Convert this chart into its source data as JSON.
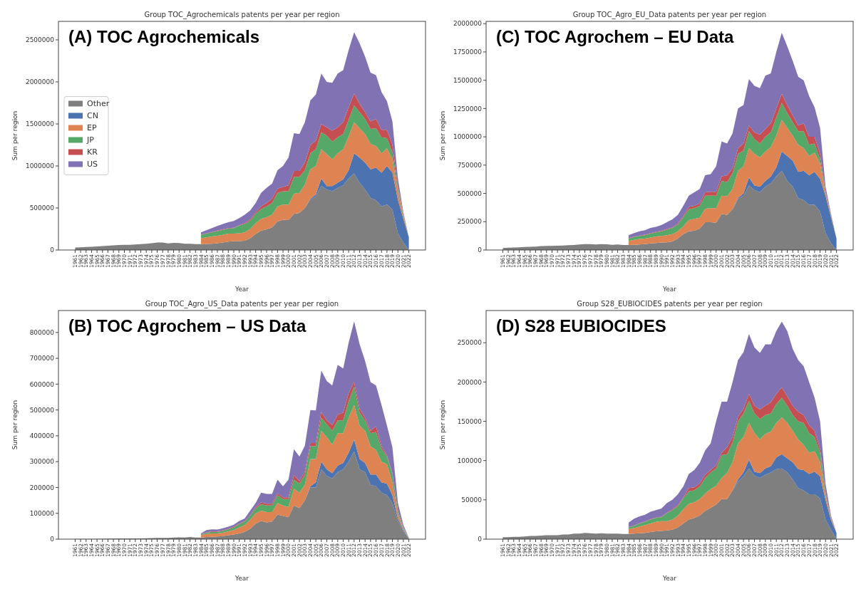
{
  "chart_data": [
    {
      "type": "area",
      "stacked": true,
      "title": "Group TOC_Agrochemicals patents per year per region",
      "annotations": [
        "(A) TOC Agrochemicals"
      ],
      "xlabel": "Year",
      "ylabel": "Sum per region",
      "legend": "center left",
      "ylim": [
        0,
        2720000
      ],
      "yticks": [
        0,
        500000,
        1000000,
        1500000,
        2000000,
        2500000
      ],
      "categories": [
        "1961",
        "1962",
        "1963",
        "1964",
        "1965",
        "1966",
        "1967",
        "1968",
        "1969",
        "1970",
        "1971",
        "1972",
        "1973",
        "1974",
        "1975",
        "1976",
        "1977",
        "1978",
        "1979",
        "1980",
        "1981",
        "1982",
        "1983",
        "1984",
        "1985",
        "1986",
        "1987",
        "1988",
        "1989",
        "1990",
        "1991",
        "1992",
        "1993",
        "1994",
        "1995",
        "1996",
        "1997",
        "1998",
        "1999",
        "2000",
        "2001",
        "2002",
        "2003",
        "2004",
        "2005",
        "2006",
        "2007",
        "2008",
        "2009",
        "2010",
        "2011",
        "2012",
        "2013",
        "2014",
        "2015",
        "2016",
        "2017",
        "2018",
        "2019",
        "2020",
        "2021",
        "2022"
      ],
      "series": [
        {
          "name": "Other",
          "color": "#7f7f7f",
          "values": [
            30000,
            32000,
            35000,
            38000,
            42000,
            46000,
            50000,
            56000,
            60000,
            62000,
            62000,
            66000,
            70000,
            75000,
            80000,
            90000,
            88000,
            78000,
            85000,
            82000,
            75000,
            75000,
            70000,
            70000,
            72000,
            75000,
            80000,
            90000,
            100000,
            105000,
            105000,
            110000,
            140000,
            190000,
            230000,
            245000,
            270000,
            340000,
            360000,
            355000,
            430000,
            440000,
            500000,
            600000,
            640000,
            760000,
            720000,
            700000,
            740000,
            770000,
            850000,
            910000,
            800000,
            720000,
            620000,
            590000,
            520000,
            540000,
            480000,
            200000,
            90000,
            0
          ]
        },
        {
          "name": "CN",
          "color": "#4c72b0",
          "values": [
            null,
            null,
            null,
            null,
            null,
            null,
            null,
            null,
            null,
            null,
            null,
            null,
            null,
            null,
            null,
            null,
            null,
            null,
            null,
            null,
            null,
            null,
            null,
            0,
            0,
            0,
            0,
            0,
            0,
            0,
            0,
            0,
            0,
            0,
            0,
            0,
            0,
            0,
            0,
            0,
            0,
            0,
            0,
            10000,
            20000,
            90000,
            40000,
            60000,
            60000,
            70000,
            100000,
            240000,
            300000,
            320000,
            340000,
            390000,
            400000,
            460000,
            440000,
            400000,
            280000,
            150000
          ]
        },
        {
          "name": "EP",
          "color": "#dd8452",
          "values": [
            null,
            null,
            null,
            null,
            null,
            null,
            null,
            null,
            null,
            null,
            null,
            null,
            null,
            null,
            null,
            null,
            null,
            null,
            null,
            null,
            null,
            null,
            null,
            70000,
            78000,
            85000,
            90000,
            90000,
            95000,
            90000,
            95000,
            100000,
            110000,
            130000,
            140000,
            145000,
            150000,
            180000,
            180000,
            185000,
            240000,
            240000,
            280000,
            350000,
            340000,
            350000,
            380000,
            320000,
            350000,
            360000,
            400000,
            370000,
            350000,
            340000,
            300000,
            260000,
            230000,
            210000,
            160000,
            100000,
            30000,
            0
          ]
        },
        {
          "name": "JP",
          "color": "#55a868",
          "values": [
            null,
            null,
            null,
            null,
            null,
            null,
            null,
            null,
            null,
            null,
            null,
            null,
            null,
            null,
            null,
            null,
            null,
            null,
            null,
            null,
            null,
            null,
            null,
            40000,
            45000,
            50000,
            55000,
            60000,
            60000,
            65000,
            90000,
            100000,
            100000,
            110000,
            120000,
            130000,
            140000,
            160000,
            160000,
            160000,
            200000,
            190000,
            170000,
            190000,
            200000,
            200000,
            220000,
            210000,
            190000,
            180000,
            200000,
            200000,
            190000,
            180000,
            180000,
            210000,
            190000,
            120000,
            80000,
            30000,
            20000,
            0
          ]
        },
        {
          "name": "KR",
          "color": "#c44e52",
          "values": [
            null,
            null,
            null,
            null,
            null,
            null,
            null,
            null,
            null,
            null,
            null,
            null,
            null,
            null,
            null,
            null,
            null,
            null,
            null,
            null,
            null,
            null,
            null,
            5000,
            5000,
            5000,
            5000,
            5000,
            5000,
            5000,
            5000,
            10000,
            15000,
            20000,
            30000,
            40000,
            50000,
            50000,
            50000,
            70000,
            70000,
            70000,
            90000,
            100000,
            100000,
            100000,
            100000,
            130000,
            120000,
            140000,
            150000,
            140000,
            100000,
            80000,
            90000,
            110000,
            90000,
            100000,
            90000,
            30000,
            10000,
            0
          ]
        },
        {
          "name": "US",
          "color": "#8172b3",
          "values": [
            null,
            null,
            null,
            null,
            null,
            null,
            null,
            null,
            null,
            null,
            null,
            null,
            null,
            null,
            null,
            null,
            null,
            null,
            null,
            null,
            null,
            null,
            null,
            25000,
            35000,
            45000,
            55000,
            65000,
            70000,
            80000,
            85000,
            100000,
            105000,
            110000,
            160000,
            180000,
            180000,
            220000,
            250000,
            330000,
            450000,
            440000,
            480000,
            530000,
            550000,
            600000,
            540000,
            570000,
            640000,
            620000,
            680000,
            730000,
            720000,
            660000,
            580000,
            520000,
            450000,
            340000,
            280000,
            90000,
            20000,
            0
          ]
        }
      ]
    },
    {
      "type": "area",
      "stacked": true,
      "title": "Group TOC_Agro_EU_Data patents per year per region",
      "annotations": [
        "(C) TOC Agrochem – EU Data"
      ],
      "xlabel": "Year",
      "ylabel": "Sum per region",
      "ylim": [
        0,
        2020000
      ],
      "yticks": [
        0,
        250000,
        500000,
        750000,
        1000000,
        1250000,
        1500000,
        1750000,
        2000000
      ],
      "categories": [
        "1961",
        "1962",
        "1963",
        "1964",
        "1965",
        "1966",
        "1967",
        "1968",
        "1969",
        "1970",
        "1971",
        "1972",
        "1973",
        "1974",
        "1975",
        "1976",
        "1977",
        "1978",
        "1979",
        "1980",
        "1981",
        "1982",
        "1983",
        "1984",
        "1985",
        "1986",
        "1987",
        "1988",
        "1989",
        "1990",
        "1991",
        "1992",
        "1993",
        "1994",
        "1995",
        "1996",
        "1997",
        "1998",
        "1999",
        "2000",
        "2001",
        "2002",
        "2003",
        "2004",
        "2005",
        "2006",
        "2007",
        "2008",
        "2009",
        "2010",
        "2011",
        "2012",
        "2013",
        "2014",
        "2015",
        "2016",
        "2017",
        "2018",
        "2019",
        "2020",
        "2021",
        "2022"
      ],
      "series": [
        {
          "color": "#7f7f7f",
          "values": [
            18000,
            20000,
            22000,
            24000,
            26000,
            28000,
            30000,
            34000,
            36000,
            36000,
            38000,
            40000,
            42000,
            44000,
            48000,
            52000,
            52000,
            48000,
            52000,
            50000,
            46000,
            48000,
            44000,
            44000,
            46000,
            48000,
            52000,
            58000,
            62000,
            66000,
            68000,
            75000,
            100000,
            140000,
            165000,
            170000,
            190000,
            245000,
            245000,
            240000,
            320000,
            310000,
            360000,
            450000,
            480000,
            570000,
            530000,
            510000,
            560000,
            590000,
            650000,
            700000,
            610000,
            560000,
            460000,
            440000,
            400000,
            400000,
            340000,
            150000,
            60000,
            0
          ]
        },
        {
          "color": "#4c72b0",
          "values": [
            null,
            null,
            null,
            null,
            null,
            null,
            null,
            null,
            null,
            null,
            null,
            null,
            null,
            null,
            null,
            null,
            null,
            null,
            null,
            null,
            null,
            null,
            null,
            0,
            0,
            0,
            0,
            0,
            0,
            0,
            0,
            0,
            0,
            0,
            0,
            0,
            0,
            0,
            0,
            0,
            0,
            0,
            0,
            10000,
            20000,
            70000,
            40000,
            50000,
            50000,
            60000,
            80000,
            170000,
            220000,
            230000,
            230000,
            260000,
            260000,
            290000,
            290000,
            330000,
            230000,
            100000
          ]
        },
        {
          "color": "#dd8452",
          "values": [
            null,
            null,
            null,
            null,
            null,
            null,
            null,
            null,
            null,
            null,
            null,
            null,
            null,
            null,
            null,
            null,
            null,
            null,
            null,
            null,
            null,
            null,
            null,
            36000,
            44000,
            50000,
            48000,
            52000,
            58000,
            59000,
            62000,
            65000,
            65000,
            70000,
            100000,
            105000,
            95000,
            120000,
            125000,
            130000,
            160000,
            165000,
            180000,
            240000,
            240000,
            260000,
            280000,
            260000,
            260000,
            260000,
            280000,
            280000,
            250000,
            220000,
            240000,
            200000,
            170000,
            170000,
            130000,
            20000,
            10000,
            0
          ]
        },
        {
          "color": "#55a868",
          "values": [
            null,
            null,
            null,
            null,
            null,
            null,
            null,
            null,
            null,
            null,
            null,
            null,
            null,
            null,
            null,
            null,
            null,
            null,
            null,
            null,
            null,
            null,
            null,
            20000,
            25000,
            27000,
            30000,
            35000,
            35000,
            40000,
            50000,
            55000,
            60000,
            80000,
            95000,
            95000,
            105000,
            115000,
            110000,
            110000,
            130000,
            125000,
            140000,
            150000,
            140000,
            150000,
            130000,
            120000,
            130000,
            130000,
            160000,
            150000,
            130000,
            120000,
            120000,
            150000,
            100000,
            80000,
            40000,
            10000,
            5000,
            0
          ]
        },
        {
          "color": "#c44e52",
          "values": [
            null,
            null,
            null,
            null,
            null,
            null,
            null,
            null,
            null,
            null,
            null,
            null,
            null,
            null,
            null,
            null,
            null,
            null,
            null,
            null,
            null,
            null,
            null,
            5000,
            3000,
            3000,
            5000,
            5000,
            5000,
            5000,
            5000,
            5000,
            10000,
            10000,
            20000,
            20000,
            20000,
            30000,
            35000,
            35000,
            40000,
            60000,
            40000,
            50000,
            60000,
            50000,
            60000,
            80000,
            70000,
            80000,
            80000,
            80000,
            70000,
            60000,
            50000,
            70000,
            70000,
            60000,
            50000,
            10000,
            5000,
            0
          ]
        },
        {
          "color": "#8172b3",
          "values": [
            null,
            null,
            null,
            null,
            null,
            null,
            null,
            null,
            null,
            null,
            null,
            null,
            null,
            null,
            null,
            null,
            null,
            null,
            null,
            null,
            null,
            null,
            null,
            25000,
            32000,
            37000,
            40000,
            45000,
            45000,
            50000,
            60000,
            70000,
            75000,
            90000,
            100000,
            120000,
            130000,
            150000,
            155000,
            225000,
            310000,
            280000,
            310000,
            350000,
            340000,
            410000,
            410000,
            410000,
            470000,
            440000,
            500000,
            540000,
            520000,
            480000,
            430000,
            380000,
            360000,
            260000,
            230000,
            40000,
            10000,
            0
          ]
        }
      ]
    },
    {
      "type": "area",
      "stacked": true,
      "title": "Group TOC_Agro_US_Data patents per year per region",
      "annotations": [
        "(B) TOC Agrochem – US Data"
      ],
      "xlabel": "Year",
      "ylabel": "Sum per region",
      "ylim": [
        0,
        885000
      ],
      "yticks": [
        0,
        100000,
        200000,
        300000,
        400000,
        500000,
        600000,
        700000,
        800000
      ],
      "categories": [
        "1961",
        "1962",
        "1963",
        "1964",
        "1965",
        "1966",
        "1967",
        "1968",
        "1969",
        "1970",
        "1971",
        "1972",
        "1973",
        "1974",
        "1975",
        "1976",
        "1977",
        "1978",
        "1979",
        "1980",
        "1981",
        "1982",
        "1983",
        "1984",
        "1985",
        "1986",
        "1987",
        "1988",
        "1989",
        "1990",
        "1991",
        "1992",
        "1993",
        "1994",
        "1995",
        "1996",
        "1997",
        "1998",
        "1999",
        "2000",
        "2001",
        "2002",
        "2003",
        "2004",
        "2005",
        "2006",
        "2007",
        "2008",
        "2009",
        "2010",
        "2011",
        "2012",
        "2013",
        "2014",
        "2015",
        "2016",
        "2017",
        "2018",
        "2019",
        "2020",
        "2021",
        "2022"
      ],
      "series": [
        {
          "color": "#7f7f7f",
          "values": [
            500,
            500,
            800,
            1000,
            1000,
            1500,
            2000,
            2000,
            2500,
            2500,
            3000,
            3000,
            3000,
            3500,
            4000,
            5000,
            5000,
            5000,
            6000,
            7000,
            6000,
            8000,
            6000,
            6000,
            8000,
            9000,
            10000,
            12000,
            15000,
            18000,
            22000,
            28000,
            40000,
            60000,
            70000,
            65000,
            68000,
            95000,
            90000,
            85000,
            130000,
            120000,
            150000,
            200000,
            200000,
            270000,
            245000,
            235000,
            260000,
            270000,
            300000,
            340000,
            270000,
            260000,
            210000,
            205000,
            180000,
            170000,
            140000,
            70000,
            30000,
            3000
          ]
        },
        {
          "color": "#4c72b0",
          "values": [
            null,
            null,
            null,
            null,
            null,
            null,
            null,
            null,
            null,
            null,
            null,
            null,
            null,
            null,
            null,
            null,
            null,
            null,
            null,
            null,
            null,
            null,
            null,
            0,
            0,
            0,
            0,
            0,
            0,
            0,
            0,
            0,
            0,
            0,
            0,
            0,
            0,
            0,
            0,
            0,
            0,
            0,
            0,
            5000,
            20000,
            30000,
            25000,
            20000,
            25000,
            25000,
            35000,
            45000,
            40000,
            35000,
            40000,
            45000,
            40000,
            45000,
            30000,
            10000,
            5000,
            1000
          ]
        },
        {
          "color": "#dd8452",
          "values": [
            null,
            null,
            null,
            null,
            null,
            null,
            null,
            null,
            null,
            null,
            null,
            null,
            null,
            null,
            null,
            null,
            null,
            null,
            null,
            null,
            null,
            null,
            null,
            9000,
            12000,
            13000,
            12000,
            13000,
            15000,
            17000,
            23000,
            27000,
            35000,
            40000,
            40000,
            40000,
            37000,
            45000,
            40000,
            40000,
            65000,
            60000,
            60000,
            105000,
            90000,
            120000,
            125000,
            110000,
            125000,
            115000,
            135000,
            135000,
            130000,
            125000,
            110000,
            95000,
            80000,
            75000,
            50000,
            20000,
            5000,
            1000
          ]
        },
        {
          "color": "#55a868",
          "values": [
            null,
            null,
            null,
            null,
            null,
            null,
            null,
            null,
            null,
            null,
            null,
            null,
            null,
            null,
            null,
            null,
            null,
            null,
            null,
            null,
            null,
            null,
            null,
            3000,
            5000,
            6000,
            6000,
            7000,
            8000,
            10000,
            13000,
            13000,
            15000,
            20000,
            25000,
            25000,
            25000,
            30000,
            25000,
            30000,
            35000,
            35000,
            40000,
            50000,
            50000,
            50000,
            50000,
            55000,
            50000,
            50000,
            65000,
            70000,
            50000,
            40000,
            50000,
            70000,
            50000,
            30000,
            30000,
            10000,
            5000,
            0
          ]
        },
        {
          "color": "#c44e52",
          "values": [
            null,
            null,
            null,
            null,
            null,
            null,
            null,
            null,
            null,
            null,
            null,
            null,
            null,
            null,
            null,
            null,
            null,
            null,
            null,
            null,
            null,
            null,
            null,
            1000,
            1000,
            2000,
            2000,
            2000,
            2000,
            3000,
            2000,
            2000,
            3000,
            5000,
            7000,
            7000,
            7000,
            8000,
            7000,
            7000,
            18000,
            10000,
            12000,
            12000,
            12000,
            22000,
            15000,
            22000,
            22000,
            30000,
            30000,
            18000,
            15000,
            10000,
            10000,
            22000,
            10000,
            5000,
            5000,
            2000,
            1000,
            0
          ]
        },
        {
          "color": "#8172b3",
          "values": [
            null,
            null,
            null,
            null,
            null,
            null,
            null,
            null,
            null,
            null,
            null,
            null,
            null,
            null,
            null,
            null,
            null,
            null,
            null,
            null,
            null,
            null,
            null,
            3000,
            9000,
            8000,
            7000,
            8000,
            8000,
            8000,
            10000,
            10000,
            17000,
            15000,
            38000,
            38000,
            38000,
            52000,
            43000,
            68000,
            100000,
            95000,
            100000,
            128000,
            126000,
            161000,
            152000,
            153000,
            193000,
            170000,
            195000,
            235000,
            250000,
            220000,
            188000,
            158000,
            160000,
            115000,
            100000,
            28000,
            9000,
            0
          ]
        }
      ]
    },
    {
      "type": "area",
      "stacked": true,
      "title": "Group S28_EUBIOCIDES patents per year per region",
      "annotations": [
        "(D) S28 EUBIOCIDES"
      ],
      "xlabel": "Year",
      "ylabel": "Sum per region",
      "ylim": [
        0,
        291000
      ],
      "yticks": [
        0,
        50000,
        100000,
        150000,
        200000,
        250000
      ],
      "categories": [
        "1961",
        "1962",
        "1963",
        "1964",
        "1965",
        "1966",
        "1967",
        "1968",
        "1969",
        "1970",
        "1971",
        "1972",
        "1973",
        "1974",
        "1975",
        "1976",
        "1977",
        "1978",
        "1979",
        "1980",
        "1981",
        "1982",
        "1983",
        "1984",
        "1985",
        "1986",
        "1987",
        "1988",
        "1989",
        "1990",
        "1991",
        "1992",
        "1993",
        "1994",
        "1995",
        "1996",
        "1997",
        "1998",
        "1999",
        "2000",
        "2001",
        "2002",
        "2003",
        "2004",
        "2005",
        "2006",
        "2007",
        "2008",
        "2009",
        "2010",
        "2011",
        "2012",
        "2013",
        "2014",
        "2015",
        "2016",
        "2017",
        "2018",
        "2019",
        "2020",
        "2021",
        "2022"
      ],
      "series": [
        {
          "color": "#7f7f7f",
          "values": [
            2500,
            2500,
            3000,
            3000,
            3500,
            4000,
            4000,
            4500,
            5000,
            5000,
            5000,
            6000,
            6000,
            7000,
            7000,
            8000,
            7500,
            7000,
            7500,
            7000,
            7000,
            7000,
            6500,
            6500,
            7000,
            7500,
            8000,
            9000,
            10000,
            10500,
            11000,
            12000,
            15000,
            20000,
            25000,
            27000,
            30000,
            36000,
            40000,
            44000,
            51000,
            51000,
            62000,
            73000,
            80000,
            90000,
            81000,
            78000,
            82000,
            85000,
            89000,
            90000,
            85000,
            76000,
            65000,
            62000,
            57000,
            57000,
            52000,
            25000,
            12000,
            0
          ]
        },
        {
          "color": "#4c72b0",
          "values": [
            null,
            null,
            null,
            null,
            null,
            null,
            null,
            null,
            null,
            null,
            null,
            null,
            null,
            null,
            null,
            null,
            null,
            null,
            null,
            null,
            null,
            null,
            null,
            0,
            0,
            0,
            0,
            0,
            0,
            0,
            0,
            0,
            0,
            0,
            0,
            0,
            0,
            0,
            0,
            0,
            0,
            0,
            0,
            3000,
            5000,
            11000,
            5000,
            6000,
            8000,
            8000,
            15000,
            18000,
            18000,
            22000,
            24000,
            26000,
            26000,
            29000,
            28000,
            25000,
            12000,
            8000
          ]
        },
        {
          "color": "#dd8452",
          "values": [
            null,
            null,
            null,
            null,
            null,
            null,
            null,
            null,
            null,
            null,
            null,
            null,
            null,
            null,
            null,
            null,
            null,
            null,
            null,
            null,
            null,
            null,
            null,
            6500,
            7000,
            8500,
            10000,
            11000,
            12000,
            12500,
            12000,
            13000,
            15000,
            18000,
            20000,
            20000,
            21000,
            22000,
            24000,
            24000,
            27000,
            33000,
            36000,
            46000,
            45000,
            47000,
            49000,
            43000,
            44000,
            44000,
            44000,
            47000,
            45000,
            40000,
            38000,
            32000,
            27000,
            26000,
            18000,
            5000,
            2000,
            0
          ]
        },
        {
          "color": "#55a868",
          "values": [
            null,
            null,
            null,
            null,
            null,
            null,
            null,
            null,
            null,
            null,
            null,
            null,
            null,
            null,
            null,
            null,
            null,
            null,
            null,
            null,
            null,
            null,
            null,
            2000,
            3000,
            4000,
            4000,
            5000,
            5000,
            5000,
            10000,
            12000,
            12000,
            14000,
            16000,
            15000,
            16000,
            20000,
            21000,
            22000,
            29000,
            24000,
            25000,
            28000,
            30000,
            28000,
            25000,
            26000,
            24000,
            23000,
            24000,
            25000,
            22000,
            20000,
            23000,
            28000,
            25000,
            18000,
            12000,
            3000,
            1000,
            0
          ]
        },
        {
          "color": "#c44e52",
          "values": [
            null,
            null,
            null,
            null,
            null,
            null,
            null,
            null,
            null,
            null,
            null,
            null,
            null,
            null,
            null,
            null,
            null,
            null,
            null,
            null,
            null,
            null,
            null,
            500,
            500,
            500,
            500,
            500,
            500,
            500,
            500,
            1000,
            1000,
            1000,
            4000,
            4000,
            4000,
            4000,
            3000,
            4000,
            3000,
            9000,
            7000,
            6000,
            6000,
            9000,
            10000,
            12000,
            12000,
            14000,
            13000,
            13000,
            12000,
            12000,
            12000,
            10000,
            10000,
            8000,
            5000,
            2000,
            1000,
            0
          ]
        },
        {
          "color": "#8172b3",
          "values": [
            null,
            null,
            null,
            null,
            null,
            null,
            null,
            null,
            null,
            null,
            null,
            null,
            null,
            null,
            null,
            null,
            null,
            null,
            null,
            null,
            null,
            null,
            null,
            5500,
            8500,
            8500,
            8500,
            9500,
            9500,
            10500,
            12500,
            12000,
            14000,
            14000,
            18000,
            22000,
            26000,
            31000,
            34000,
            56000,
            65000,
            58000,
            70000,
            72000,
            72000,
            76000,
            74000,
            72000,
            78000,
            74000,
            80000,
            84000,
            83000,
            72000,
            66000,
            62000,
            55000,
            42000,
            35000,
            10000,
            2000,
            0
          ]
        }
      ]
    }
  ]
}
